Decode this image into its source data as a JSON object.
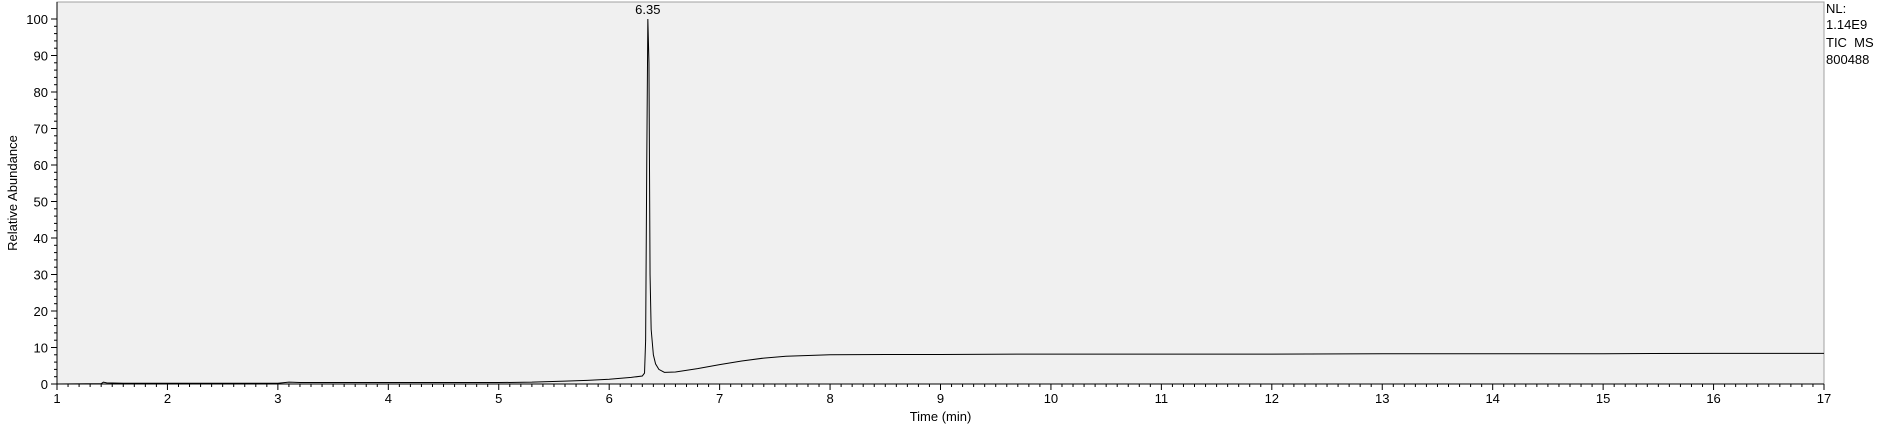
{
  "chart_data": {
    "type": "line",
    "title": "",
    "xlabel": "Time (min)",
    "ylabel": "Relative Abundance",
    "xlim": [
      1,
      17
    ],
    "ylim": [
      0,
      100
    ],
    "x_major_ticks": [
      1,
      2,
      3,
      4,
      5,
      6,
      7,
      8,
      9,
      10,
      11,
      12,
      13,
      14,
      15,
      16,
      17
    ],
    "y_major_ticks": [
      0,
      10,
      20,
      30,
      40,
      50,
      60,
      70,
      80,
      90,
      100
    ],
    "x_tick_labels": [
      "1",
      "2",
      "3",
      "4",
      "5",
      "6",
      "7",
      "8",
      "9",
      "10",
      "11",
      "12",
      "13",
      "14",
      "15",
      "16",
      "17"
    ],
    "y_tick_labels": [
      "0",
      "10",
      "20",
      "30",
      "40",
      "50",
      "60",
      "70",
      "80",
      "90",
      "100"
    ],
    "grid": false,
    "background_color": "#f0f0f0",
    "line_color": "#000000",
    "peak_label": "6.35",
    "peak": {
      "x": 6.35,
      "y": 100
    },
    "info": {
      "nl_label": "NL:",
      "nl_value": "1.14E9",
      "trace": "TIC  MS",
      "sample": "800488"
    },
    "series": [
      {
        "name": "TIC MS",
        "x": [
          1.0,
          1.4,
          1.42,
          1.45,
          1.6,
          2.0,
          2.5,
          3.0,
          3.1,
          3.2,
          3.5,
          4.0,
          4.5,
          5.0,
          5.3,
          5.6,
          5.8,
          6.0,
          6.2,
          6.3,
          6.32,
          6.33,
          6.34,
          6.35,
          6.36,
          6.37,
          6.38,
          6.4,
          6.42,
          6.45,
          6.5,
          6.6,
          6.8,
          7.0,
          7.2,
          7.4,
          7.6,
          7.8,
          8.0,
          8.5,
          9.0,
          10.0,
          11.0,
          12.0,
          13.0,
          14.0,
          15.0,
          16.0,
          17.0
        ],
        "y": [
          0.0,
          0.1,
          0.5,
          0.3,
          0.2,
          0.2,
          0.2,
          0.2,
          0.5,
          0.4,
          0.4,
          0.4,
          0.4,
          0.4,
          0.5,
          0.8,
          1.0,
          1.3,
          1.8,
          2.2,
          3.0,
          12.0,
          60.0,
          100.0,
          88.0,
          30.0,
          15.0,
          8.0,
          5.5,
          4.0,
          3.2,
          3.3,
          4.2,
          5.3,
          6.3,
          7.1,
          7.6,
          7.8,
          8.0,
          8.1,
          8.1,
          8.2,
          8.2,
          8.2,
          8.3,
          8.3,
          8.3,
          8.4,
          8.4
        ]
      }
    ]
  }
}
